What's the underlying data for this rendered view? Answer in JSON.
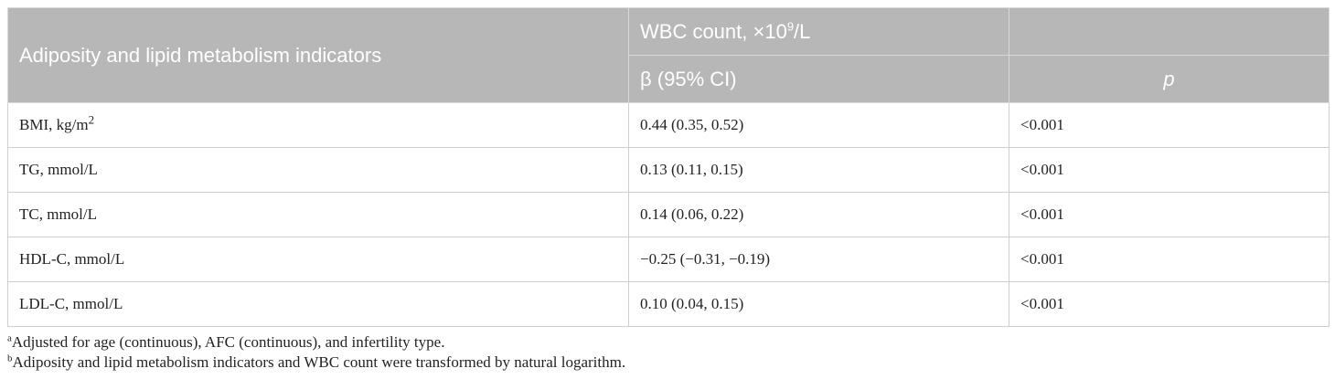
{
  "header": {
    "indicator_col": "Adiposity and lipid metabolism indicators",
    "wbc_prefix": "WBC count, ×10",
    "wbc_exp": "9",
    "wbc_suffix": "/L",
    "beta_col": "β (95% CI)",
    "p_col": "p"
  },
  "rows": [
    {
      "label": "BMI, kg/m",
      "label_sup": "2",
      "beta": "0.44 (0.35, 0.52)",
      "p": "<0.001"
    },
    {
      "label": "TG, mmol/L",
      "label_sup": "",
      "beta": "0.13 (0.11, 0.15)",
      "p": "<0.001"
    },
    {
      "label": "TC, mmol/L",
      "label_sup": "",
      "beta": "0.14 (0.06, 0.22)",
      "p": "<0.001"
    },
    {
      "label": "HDL-C, mmol/L",
      "label_sup": "",
      "beta": "−0.25 (−0.31, −0.19)",
      "p": "<0.001"
    },
    {
      "label": "LDL-C, mmol/L",
      "label_sup": "",
      "beta": "0.10 (0.04, 0.15)",
      "p": "<0.001"
    }
  ],
  "footnotes": [
    {
      "mark": "a",
      "text": "Adjusted for age (continuous), AFC (continuous), and infertility type."
    },
    {
      "mark": "b",
      "text": "Adiposity and lipid metabolism indicators and WBC count were transformed by natural logarithm."
    }
  ],
  "colors": {
    "header_bg": "#b7b7b7",
    "header_text": "#ffffff",
    "border": "#cfcfcf"
  }
}
